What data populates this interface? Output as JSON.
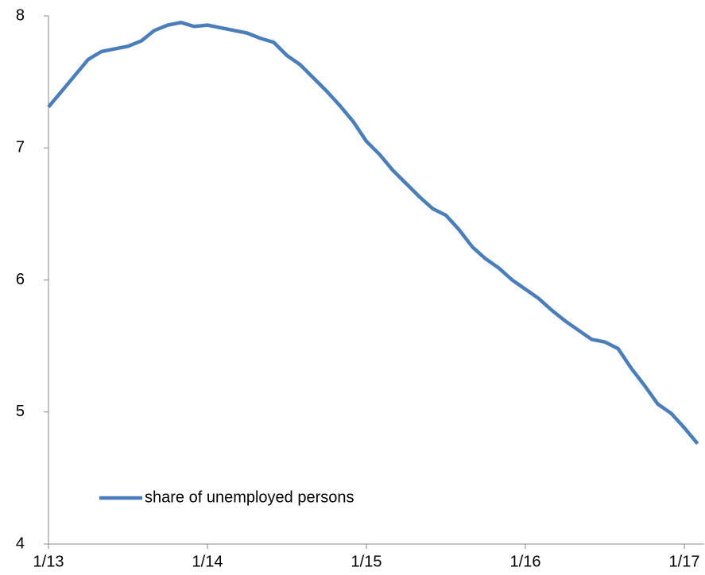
{
  "chart_data": {
    "type": "line",
    "categories": [
      "1/13",
      null,
      null,
      null,
      null,
      null,
      null,
      null,
      null,
      null,
      null,
      null,
      "1/14",
      null,
      null,
      null,
      null,
      null,
      null,
      null,
      null,
      null,
      null,
      null,
      "1/15",
      null,
      null,
      null,
      null,
      null,
      null,
      null,
      null,
      null,
      null,
      null,
      "1/16",
      null,
      null,
      null,
      null,
      null,
      null,
      null,
      null,
      null,
      null,
      null,
      "1/17",
      null
    ],
    "series": [
      {
        "name": "share of unemployed persons",
        "color": "#4a7ebb",
        "values": [
          7.31,
          7.43,
          7.55,
          7.67,
          7.73,
          7.75,
          7.77,
          7.81,
          7.89,
          7.93,
          7.95,
          7.92,
          7.93,
          7.91,
          7.89,
          7.87,
          7.83,
          7.8,
          7.7,
          7.63,
          7.53,
          7.43,
          7.32,
          7.2,
          7.05,
          6.95,
          6.83,
          6.73,
          6.63,
          6.54,
          6.49,
          6.38,
          6.25,
          6.16,
          6.09,
          6.0,
          5.93,
          5.86,
          5.77,
          5.69,
          5.62,
          5.55,
          5.53,
          5.48,
          5.33,
          5.2,
          5.06,
          4.99,
          4.88,
          4.76
        ]
      }
    ],
    "ylim": [
      4,
      8
    ],
    "yticks": [
      4,
      5,
      6,
      7,
      8
    ],
    "grid": false,
    "legend": "lower left"
  }
}
